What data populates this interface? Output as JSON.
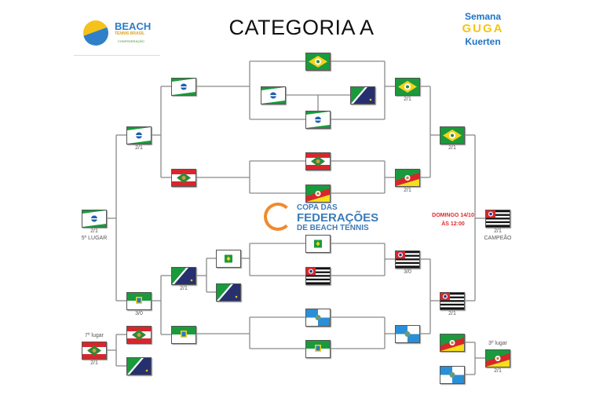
{
  "title": "CATEGORIA A",
  "logos": {
    "beach_tennis": {
      "line1": "BEACH",
      "line2": "TENNIS BRASIL",
      "line3": "CONFEDERAÇÃO"
    },
    "semana": {
      "line1": "Semana",
      "line2": "GUGA",
      "line3": "Kuerten"
    },
    "copa": {
      "line1": "COPA DAS",
      "line2": "FEDERAÇÕES",
      "line3": "DE BEACH TENNIS"
    }
  },
  "final_info": {
    "line1": "DOMINGO 14/10",
    "line2": "ÀS 12:00"
  },
  "colors": {
    "line": "#8a8a8a",
    "date_text": "#e02a2a",
    "brand_blue": "#2f7cc5",
    "brand_orange": "#f08a2c"
  },
  "flags": [
    {
      "state": "CE",
      "score": "",
      "note": ""
    },
    {
      "state": "PR",
      "score": "",
      "note": ""
    },
    {
      "state": "MS",
      "score": "",
      "note": ""
    },
    {
      "state": "PR",
      "score": "",
      "note": ""
    },
    {
      "state": "CE",
      "score": "2/1",
      "note": ""
    },
    {
      "state": "PR",
      "score": "",
      "note": ""
    },
    {
      "state": "SC",
      "score": "",
      "note": ""
    },
    {
      "state": "PR",
      "score": "2/1",
      "note": ""
    },
    {
      "state": "SC",
      "score": "",
      "note": ""
    },
    {
      "state": "RS",
      "score": "",
      "note": ""
    },
    {
      "state": "RS",
      "score": "2/1",
      "note": ""
    },
    {
      "state": "CE",
      "score": "2/1",
      "note": ""
    },
    {
      "state": "PR",
      "score": "2/1",
      "note": "5º LUGAR"
    },
    {
      "state": "SP",
      "score": "2/1",
      "note": "CAMPEÃO"
    },
    {
      "state": "DF",
      "score": "",
      "note": ""
    },
    {
      "state": "MS",
      "score": "",
      "note": ""
    },
    {
      "state": "MS",
      "score": "2/1",
      "note": ""
    },
    {
      "state": "DF",
      "score": "",
      "note": ""
    },
    {
      "state": "SP",
      "score": "",
      "note": ""
    },
    {
      "state": "SP",
      "score": "3/0",
      "note": ""
    },
    {
      "state": "RN",
      "score": "3/0",
      "note": ""
    },
    {
      "state": "RN",
      "score": "",
      "note": ""
    },
    {
      "state": "RJ",
      "score": "",
      "note": ""
    },
    {
      "state": "RN",
      "score": "",
      "note": ""
    },
    {
      "state": "RJ",
      "score": "",
      "note": ""
    },
    {
      "state": "SP",
      "score": "2/1",
      "note": ""
    },
    {
      "state": "SC",
      "score": "",
      "note": ""
    },
    {
      "state": "MS",
      "score": "",
      "note": ""
    },
    {
      "state": "SC",
      "score": "2/1",
      "note": "7º lugar"
    },
    {
      "state": "RS",
      "score": "",
      "note": ""
    },
    {
      "state": "RJ",
      "score": "",
      "note": ""
    },
    {
      "state": "RS",
      "score": "2/1",
      "note": "3º lugar"
    }
  ]
}
